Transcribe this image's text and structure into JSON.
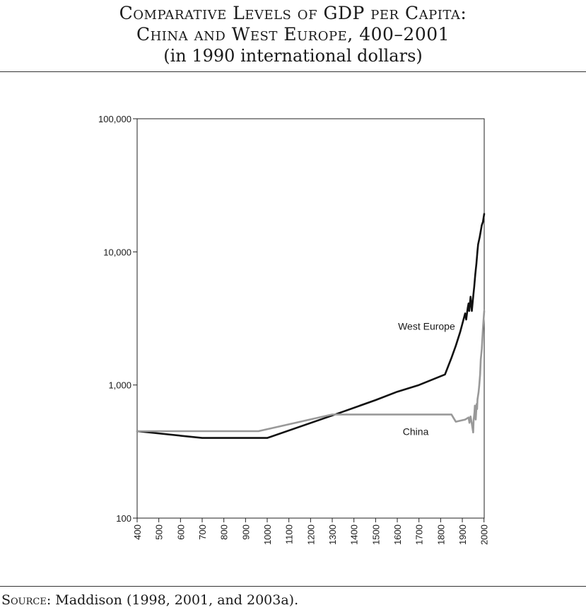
{
  "header": {
    "title_line1": "Comparative Levels of GDP per Capita:",
    "title_line2": "China and West Europe, 400–2001",
    "subtitle": "(in 1990 international dollars)"
  },
  "footer": {
    "source_lead": "Source",
    "source_text": ": Maddison (1998, 2001, and 2003a)."
  },
  "chart_data": {
    "type": "line",
    "yscale": "log",
    "ylim": [
      100,
      100000
    ],
    "xlim": [
      400,
      2001
    ],
    "xticks": [
      400,
      500,
      600,
      700,
      800,
      900,
      1000,
      1100,
      1200,
      1300,
      1400,
      1500,
      1600,
      1700,
      1800,
      1900,
      2000
    ],
    "xtick_labels": [
      "400",
      "500",
      "600",
      "700",
      "800",
      "900",
      "1000",
      "1100",
      "1200",
      "1300",
      "1400",
      "1500",
      "1600",
      "1700",
      "1800",
      "1900",
      "2000"
    ],
    "yticks": [
      100,
      1000,
      10000,
      100000
    ],
    "ytick_labels": [
      "100",
      "1,000",
      "10,000",
      "100,000"
    ],
    "grid": false,
    "series": [
      {
        "name": "West Europe",
        "color": "#111111",
        "points": [
          [
            400,
            450
          ],
          [
            700,
            400
          ],
          [
            1000,
            400
          ],
          [
            1300,
            590
          ],
          [
            1500,
            770
          ],
          [
            1600,
            890
          ],
          [
            1700,
            1000
          ],
          [
            1820,
            1200
          ],
          [
            1850,
            1600
          ],
          [
            1870,
            1970
          ],
          [
            1890,
            2500
          ],
          [
            1913,
            3450
          ],
          [
            1918,
            3100
          ],
          [
            1925,
            3800
          ],
          [
            1929,
            4100
          ],
          [
            1932,
            3600
          ],
          [
            1938,
            4600
          ],
          [
            1944,
            3600
          ],
          [
            1950,
            4600
          ],
          [
            1955,
            5500
          ],
          [
            1960,
            6800
          ],
          [
            1965,
            8200
          ],
          [
            1970,
            10200
          ],
          [
            1973,
            11400
          ],
          [
            1980,
            12900
          ],
          [
            1990,
            15900
          ],
          [
            1995,
            16800
          ],
          [
            2001,
            19300
          ]
        ]
      },
      {
        "name": "China",
        "color": "#999999",
        "points": [
          [
            400,
            450
          ],
          [
            960,
            450
          ],
          [
            1300,
            600
          ],
          [
            1850,
            600
          ],
          [
            1870,
            530
          ],
          [
            1913,
            550
          ],
          [
            1929,
            570
          ],
          [
            1933,
            520
          ],
          [
            1938,
            580
          ],
          [
            1944,
            510
          ],
          [
            1950,
            440
          ],
          [
            1952,
            540
          ],
          [
            1956,
            620
          ],
          [
            1958,
            700
          ],
          [
            1960,
            660
          ],
          [
            1962,
            550
          ],
          [
            1966,
            720
          ],
          [
            1968,
            660
          ],
          [
            1970,
            780
          ],
          [
            1975,
            880
          ],
          [
            1978,
            980
          ],
          [
            1982,
            1200
          ],
          [
            1985,
            1550
          ],
          [
            1990,
            1870
          ],
          [
            1995,
            2650
          ],
          [
            2001,
            3600
          ]
        ]
      }
    ],
    "annotations": [
      {
        "text": "West Europe",
        "series": "West Europe"
      },
      {
        "text": "China",
        "series": "China"
      }
    ]
  }
}
